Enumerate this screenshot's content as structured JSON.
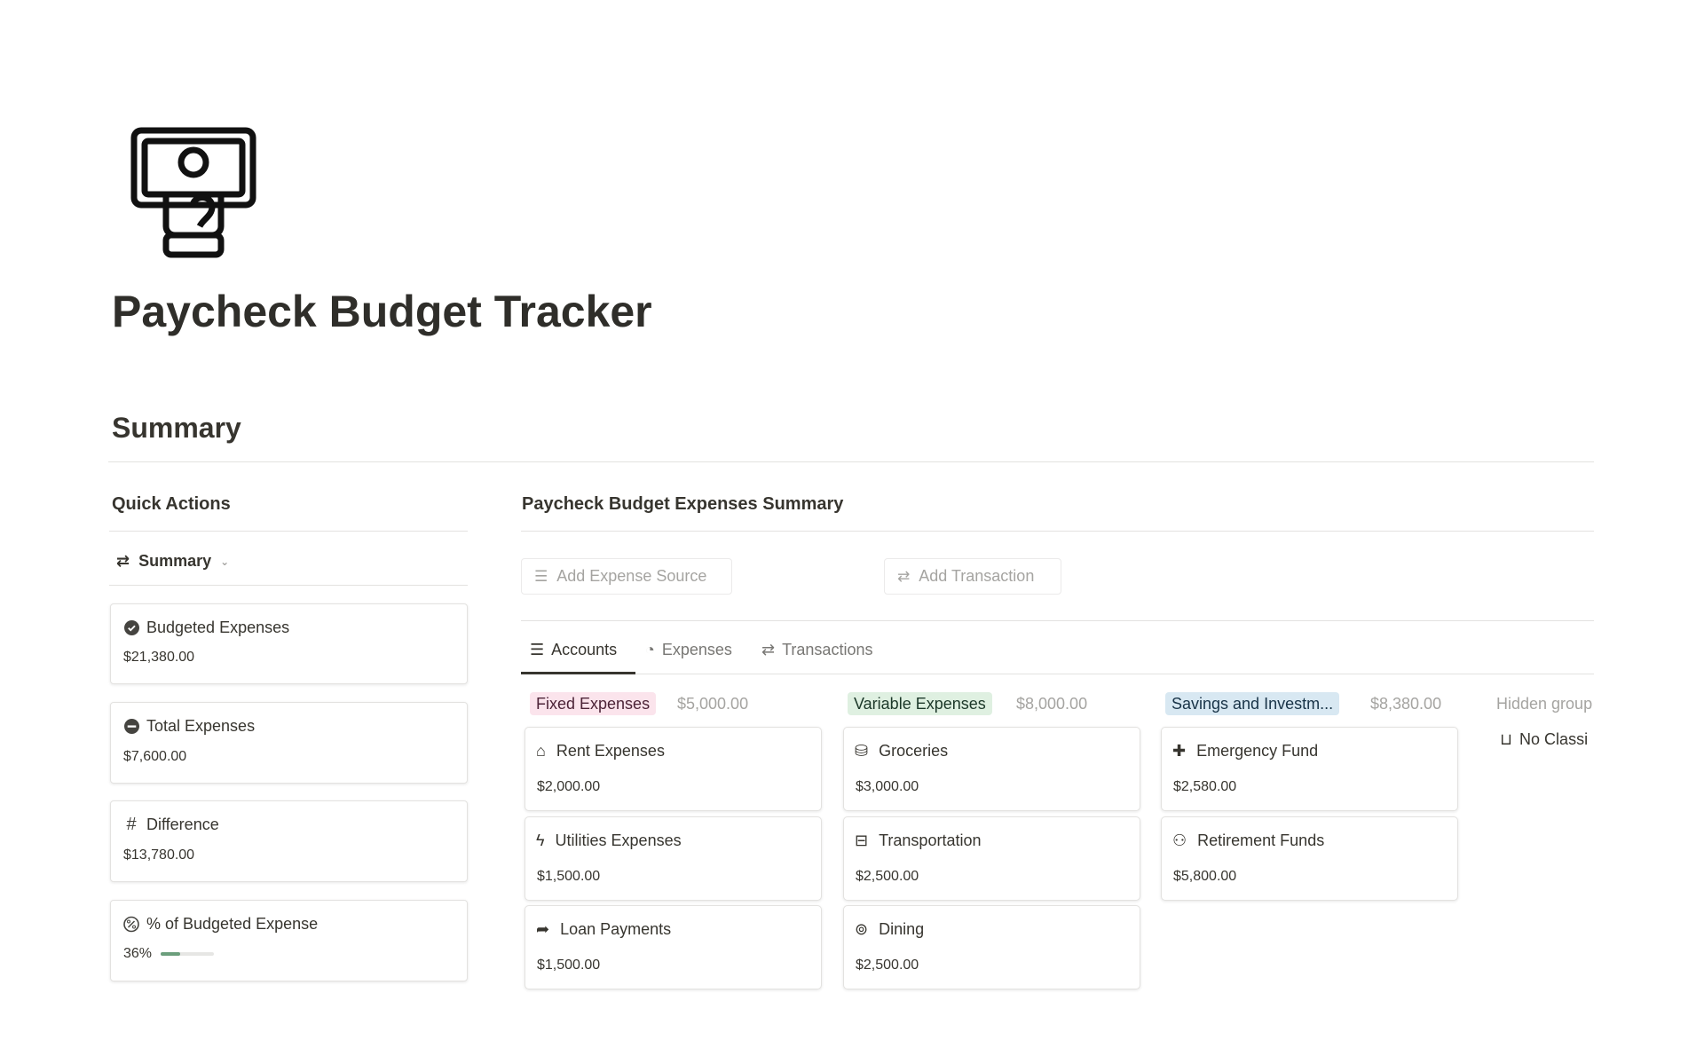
{
  "page": {
    "title": "Paycheck Budget Tracker",
    "icon": "money-hand-icon"
  },
  "summary": {
    "heading": "Summary"
  },
  "quick_actions": {
    "heading": "Quick Actions",
    "view_selector": "Summary",
    "cards": [
      {
        "label": "Budgeted Expenses",
        "value": "$21,380.00",
        "icon": "check-circle-icon"
      },
      {
        "label": "Total Expenses",
        "value": "$7,600.00",
        "icon": "minus-circle-icon"
      },
      {
        "label": "Difference",
        "value": "$13,780.00",
        "icon": "hash-icon"
      },
      {
        "label": "% of Budgeted Expense",
        "value": "36%",
        "progress": 0.36,
        "icon": "percent-icon",
        "progress_color": "#6b9e7c"
      }
    ]
  },
  "expenses_summary": {
    "heading": "Paycheck Budget Expenses Summary",
    "buttons": {
      "add_source": "Add Expense Source",
      "add_transaction": "Add Transaction"
    },
    "tabs": [
      {
        "label": "Accounts",
        "active": true
      },
      {
        "label": "Expenses"
      },
      {
        "label": "Transactions"
      }
    ],
    "groups": [
      {
        "name": "Fixed Expenses",
        "total": "$5,000.00",
        "bg": "#fbe4ec",
        "fg": "#4c2337",
        "items": [
          {
            "name": "Rent Expenses",
            "amount": "$2,000.00",
            "icon": "home-icon"
          },
          {
            "name": "Utilities Expenses",
            "amount": "$1,500.00",
            "icon": "bolt-icon"
          },
          {
            "name": "Loan Payments",
            "amount": "$1,500.00",
            "icon": "share-arrow-icon"
          }
        ]
      },
      {
        "name": "Variable Expenses",
        "total": "$8,000.00",
        "bg": "#dff0e1",
        "fg": "#1c3829",
        "items": [
          {
            "name": "Groceries",
            "amount": "$3,000.00",
            "icon": "groceries-icon"
          },
          {
            "name": "Transportation",
            "amount": "$2,500.00",
            "icon": "bus-icon"
          },
          {
            "name": "Dining",
            "amount": "$2,500.00",
            "icon": "dining-icon"
          }
        ]
      },
      {
        "name": "Savings and Investm...",
        "total": "$8,380.00",
        "bg": "#d8e8f2",
        "fg": "#183347",
        "items": [
          {
            "name": "Emergency Fund",
            "amount": "$2,580.00",
            "icon": "plus-icon"
          },
          {
            "name": "Retirement Funds",
            "amount": "$5,800.00",
            "icon": "people-icon"
          }
        ]
      }
    ],
    "hidden_groups": {
      "label": "Hidden group",
      "item": "No Classi"
    }
  }
}
